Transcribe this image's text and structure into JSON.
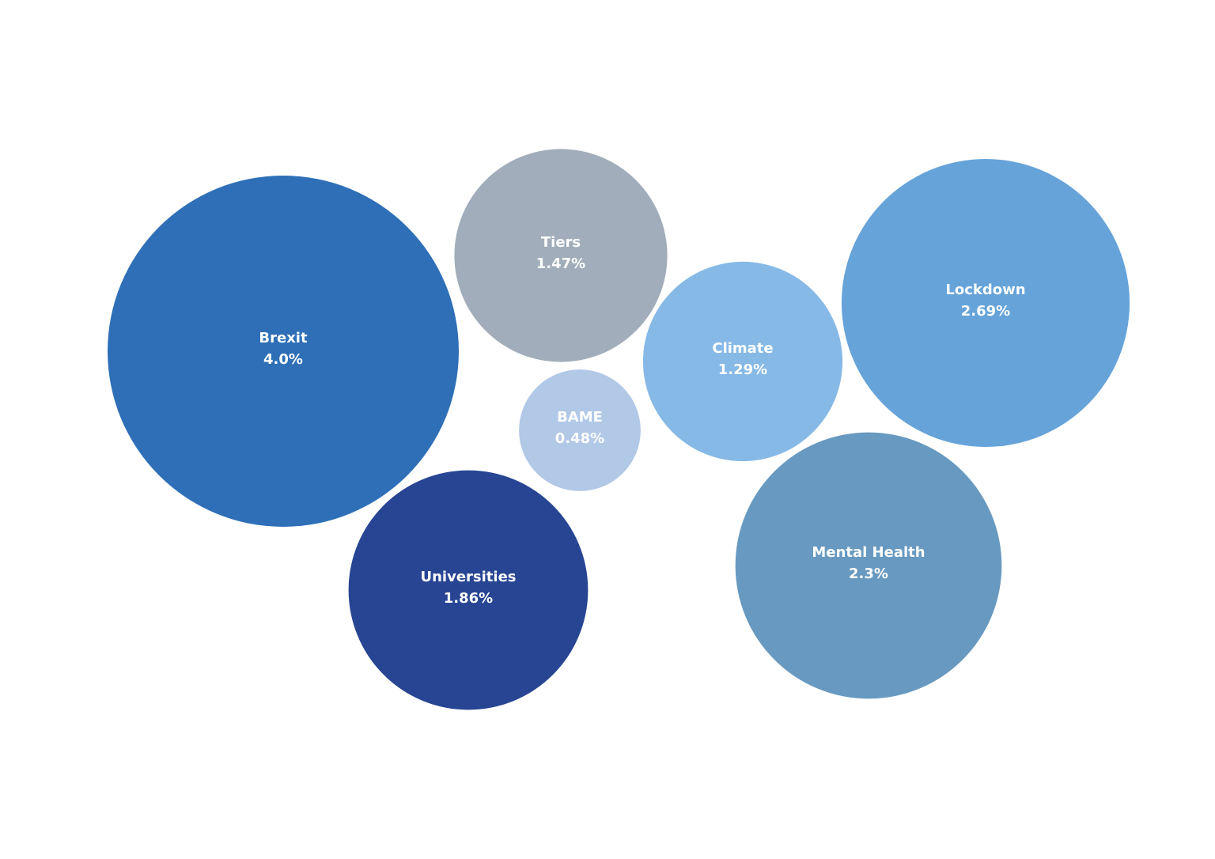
{
  "chart_data": {
    "type": "bubble",
    "categories": [
      "Brexit",
      "Tiers",
      "BAME",
      "Universities",
      "Climate",
      "Lockdown",
      "Mental Health"
    ],
    "values": [
      4.0,
      1.47,
      0.48,
      1.86,
      1.29,
      2.69,
      2.3
    ],
    "value_labels": [
      "4.0%",
      "1.47%",
      "0.48%",
      "1.86%",
      "1.29%",
      "2.69%",
      "2.3%"
    ],
    "colors": [
      "#2e6fb7",
      "#a1adba",
      "#b1c8e7",
      "#274593",
      "#86b9e6",
      "#66a3d9",
      "#6899c0"
    ]
  }
}
